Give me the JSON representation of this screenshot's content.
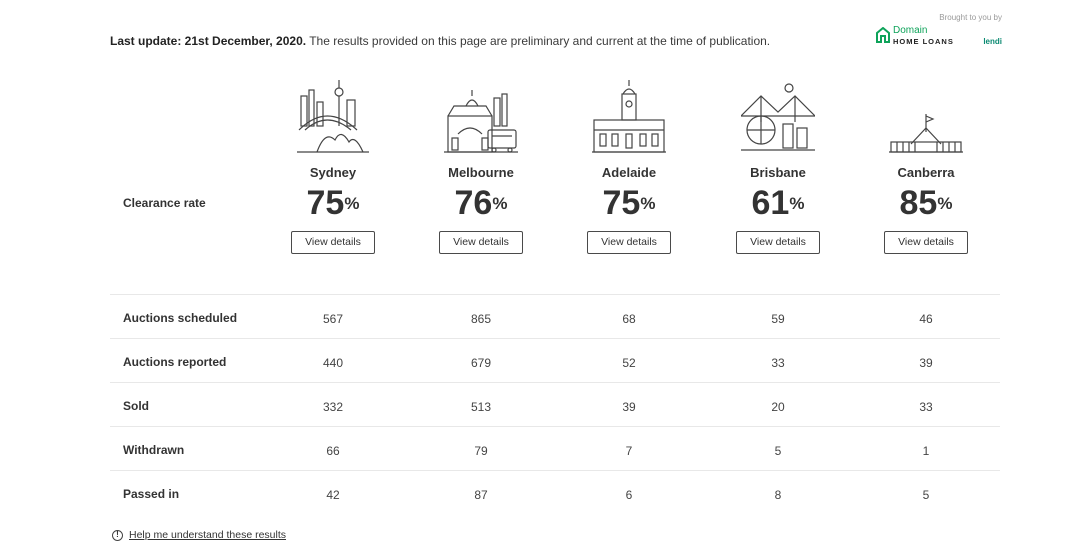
{
  "update": {
    "bold": "Last update: 21st December, 2020.",
    "text": " The results provided on this page are preliminary and current at the time of publication."
  },
  "brand": {
    "brought_by": "Brought to you by",
    "domain": "Domain",
    "home_loans": "HOME LOANS",
    "lendi": "lendi",
    "accent": "#0ea35a"
  },
  "clearance_label": "Clearance rate",
  "view_details": "View details",
  "percent_sign": "%",
  "cities": [
    {
      "name": "Sydney",
      "rate": "75",
      "icon": "sydney-opera-house-icon"
    },
    {
      "name": "Melbourne",
      "rate": "76",
      "icon": "melbourne-flinders-station-icon"
    },
    {
      "name": "Adelaide",
      "rate": "75",
      "icon": "adelaide-town-hall-icon"
    },
    {
      "name": "Brisbane",
      "rate": "61",
      "icon": "brisbane-story-bridge-icon"
    },
    {
      "name": "Canberra",
      "rate": "85",
      "icon": "canberra-parliament-house-icon"
    }
  ],
  "table": {
    "rows": [
      {
        "label": "Auctions scheduled",
        "values": [
          "567",
          "865",
          "68",
          "59",
          "46"
        ]
      },
      {
        "label": "Auctions reported",
        "values": [
          "440",
          "679",
          "52",
          "33",
          "39"
        ]
      },
      {
        "label": "Sold",
        "values": [
          "332",
          "513",
          "39",
          "20",
          "33"
        ]
      },
      {
        "label": "Withdrawn",
        "values": [
          "66",
          "79",
          "7",
          "5",
          "1"
        ]
      },
      {
        "label": "Passed in",
        "values": [
          "42",
          "87",
          "6",
          "8",
          "5"
        ]
      }
    ]
  },
  "help": {
    "icon_glyph": "!",
    "link": "Help me understand these results"
  }
}
